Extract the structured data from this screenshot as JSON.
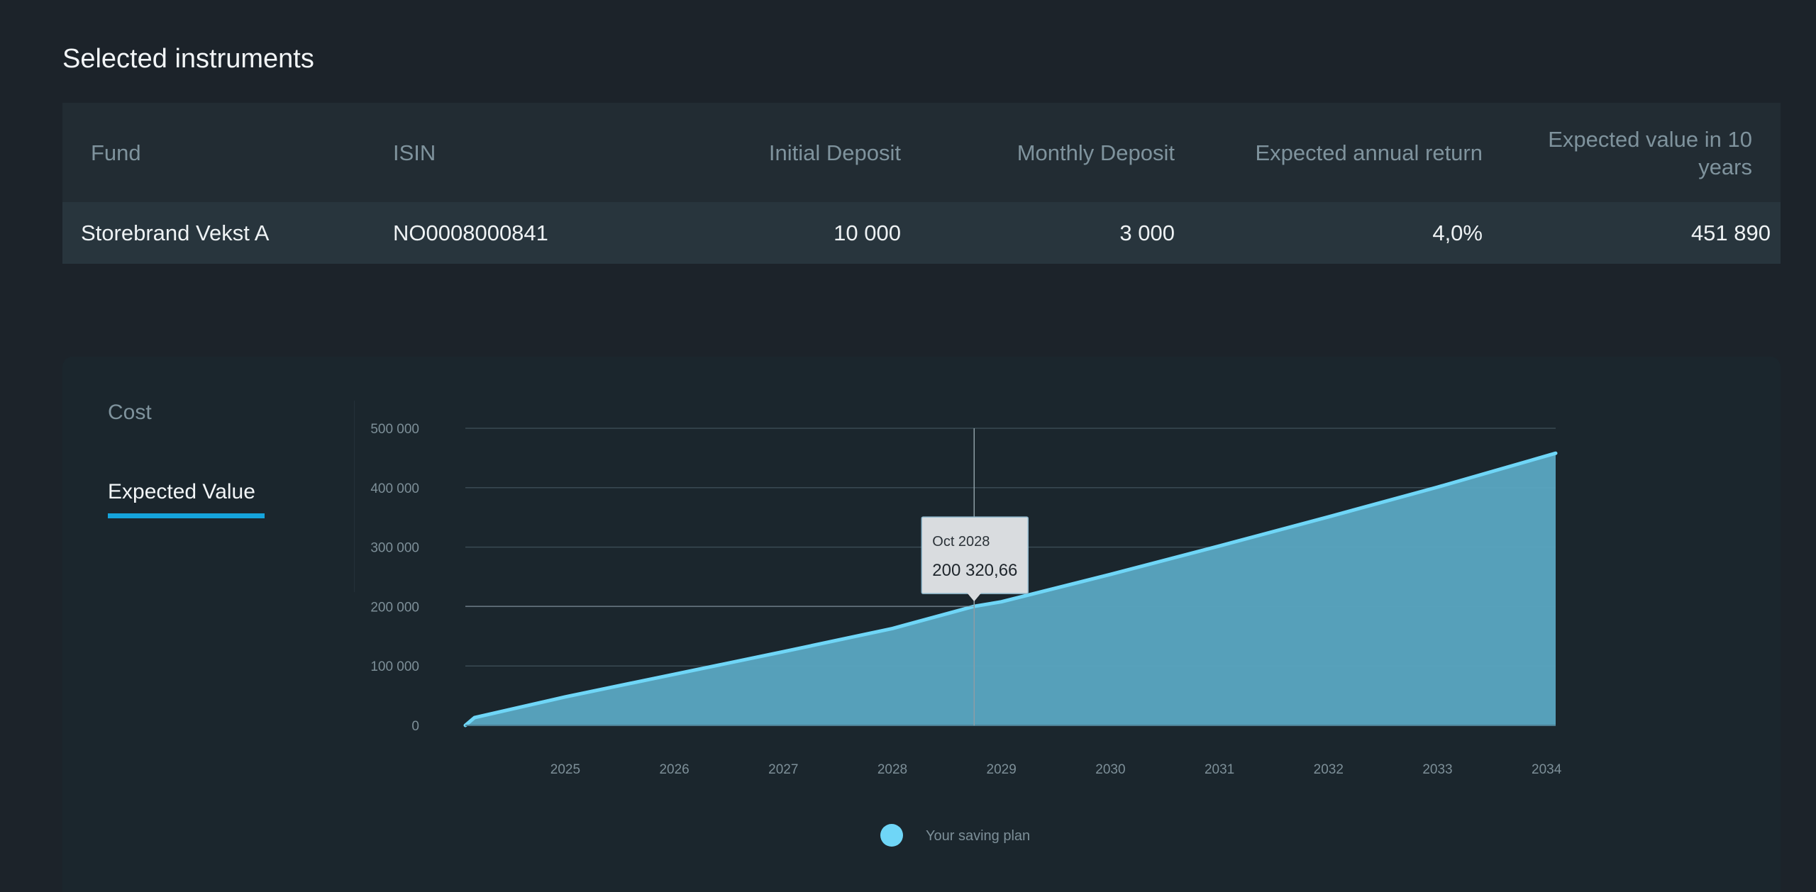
{
  "section_title": "Selected instruments",
  "table": {
    "headers": {
      "fund": "Fund",
      "isin": "ISIN",
      "initial_deposit": "Initial Deposit",
      "monthly_deposit": "Monthly Deposit",
      "expected_return": "Expected annual return",
      "expected_value_line1": "Expected value in 10",
      "expected_value_line2": "years"
    },
    "rows": [
      {
        "fund": "Storebrand Vekst A",
        "isin": "NO0008000841",
        "initial_deposit": "10 000",
        "monthly_deposit": "3 000",
        "expected_return": "4,0%",
        "expected_value": "451 890"
      }
    ]
  },
  "tabs": [
    {
      "label": "Cost",
      "active": false
    },
    {
      "label": "Expected Value",
      "active": true
    }
  ],
  "colors": {
    "background": "#1c232a",
    "card": "#1b262d",
    "series_line": "#6fd6f7",
    "series_fill": "#5aa7c2",
    "tab_accent": "#15a4dc",
    "tooltip_bg": "#d9dcdf"
  },
  "chart_data": {
    "type": "area",
    "title": "",
    "xlabel": "",
    "ylabel": "",
    "x_tick_labels": [
      "2025",
      "2026",
      "2027",
      "2028",
      "2029",
      "2030",
      "2031",
      "2032",
      "2033",
      "2034"
    ],
    "y_tick_labels": [
      "0",
      "100 000",
      "200 000",
      "300 000",
      "400 000",
      "500 000"
    ],
    "ylim": [
      0,
      500000
    ],
    "xlim": [
      "2024-02",
      "2034-02"
    ],
    "grid": true,
    "legend_position": "bottom-center",
    "series": [
      {
        "name": "Your saving plan",
        "x": [
          "2024-02",
          "2024-03",
          "2025-01",
          "2026-01",
          "2027-01",
          "2028-01",
          "2028-10",
          "2029-01",
          "2030-01",
          "2031-01",
          "2032-01",
          "2033-01",
          "2034-02"
        ],
        "values": [
          0,
          13000,
          48000,
          86000,
          124000,
          163000,
          200321,
          208000,
          254000,
          302000,
          351000,
          401000,
          458000
        ]
      }
    ],
    "tooltip": {
      "date": "Oct 2028",
      "value": "200 320,66",
      "x": "2028-10",
      "y": 200320.66
    }
  }
}
